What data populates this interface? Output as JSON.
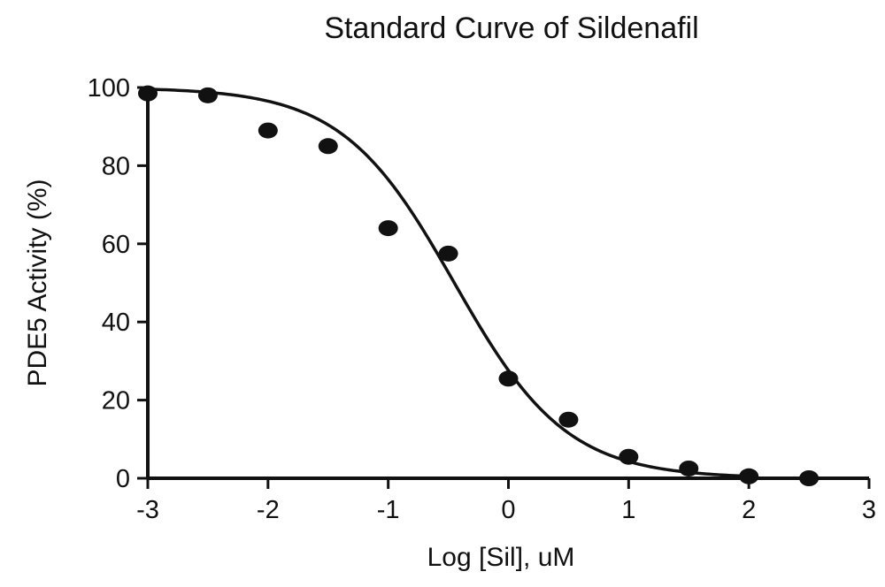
{
  "chart_data": {
    "type": "scatter",
    "title": "Standard Curve of Sildenafil",
    "xlabel": "Log [Sil], uM",
    "ylabel": "PDE5 Activity (%)",
    "xlim": [
      -3,
      3
    ],
    "ylim": [
      0,
      100
    ],
    "x_ticks": [
      -3,
      -2,
      -1,
      0,
      1,
      2,
      3
    ],
    "y_ticks": [
      0,
      20,
      40,
      60,
      80,
      100
    ],
    "grid": false,
    "series": [
      {
        "type": "scatter",
        "x": [
          -3,
          -2.5,
          -2,
          -1.5,
          -1,
          -0.5,
          0,
          0.5,
          1,
          1.5,
          2,
          2.5
        ],
        "y": [
          98.5,
          98,
          89,
          85,
          64,
          57.5,
          25.5,
          15,
          5.5,
          2.5,
          0.5,
          0
        ]
      },
      {
        "type": "line",
        "fit": "sigmoidal dose-response",
        "bottom": 0,
        "top": 100,
        "log_ic50": -0.45,
        "hill_slope": -0.93
      }
    ]
  }
}
